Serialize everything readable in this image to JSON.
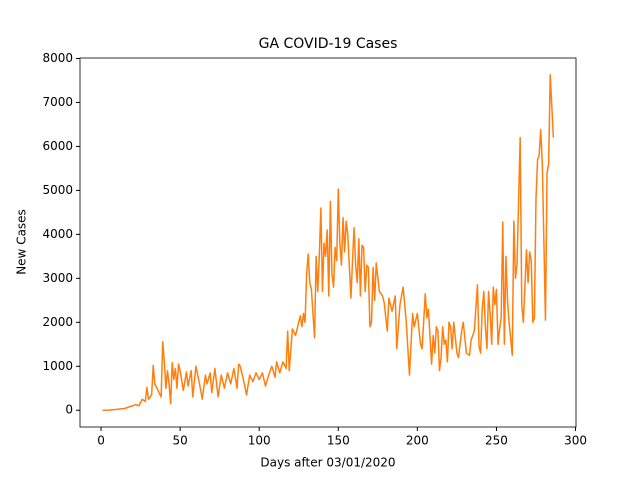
{
  "chart_data": {
    "type": "line",
    "title": "GA COVID-19 Cases",
    "x_label": "Days after 03/01/2020",
    "y_label": "New Cases",
    "xlim": [
      -13.3,
      300.3
    ],
    "ylim": [
      -381,
      8011
    ],
    "xticks": [
      0,
      50,
      100,
      150,
      200,
      250,
      300
    ],
    "yticks": [
      0,
      1000,
      2000,
      3000,
      4000,
      5000,
      6000,
      7000,
      8000
    ],
    "series": [
      {
        "name": "New Cases",
        "color": "#ff7f0e",
        "x": [
          1,
          5,
          10,
          15,
          18,
          20,
          22,
          24,
          26,
          28,
          29,
          30,
          32,
          33,
          34,
          36,
          38,
          39,
          40,
          41,
          42,
          43,
          44,
          45,
          46,
          47,
          48,
          49,
          50,
          52,
          54,
          55,
          57,
          58,
          60,
          62,
          64,
          66,
          67,
          69,
          70,
          72,
          74,
          76,
          78,
          80,
          82,
          84,
          86,
          87,
          88,
          90,
          92,
          94,
          96,
          98,
          100,
          102,
          104,
          106,
          108,
          110,
          111,
          113,
          115,
          117,
          118,
          119,
          121,
          123,
          125,
          126,
          127,
          128,
          129,
          130,
          131,
          132,
          133,
          135,
          136,
          137,
          138,
          139,
          140,
          141,
          142,
          143,
          144,
          145,
          146,
          147,
          148,
          149,
          150,
          151,
          152,
          153,
          154,
          155,
          156,
          158,
          159,
          160,
          161,
          162,
          163,
          164,
          165,
          166,
          167,
          168,
          169,
          170,
          171,
          172,
          173,
          174,
          176,
          178,
          179,
          181,
          182,
          184,
          186,
          187,
          189,
          191,
          193,
          195,
          197,
          198,
          200,
          202,
          203,
          205,
          206,
          207,
          209,
          210,
          211,
          212,
          213,
          214,
          215,
          216,
          217,
          218,
          219,
          220,
          221,
          222,
          223,
          225,
          226,
          228,
          229,
          231,
          233,
          234,
          236,
          238,
          239,
          240,
          241,
          242,
          243,
          244,
          245,
          246,
          247,
          248,
          249,
          250,
          251,
          252,
          253,
          254,
          255,
          256,
          257,
          258,
          260,
          261,
          262,
          263,
          265,
          266,
          267,
          269,
          270,
          271,
          272,
          273,
          274,
          275,
          276,
          277,
          278,
          279,
          281,
          282,
          283,
          284,
          286
        ],
        "values": [
          0,
          2,
          20,
          40,
          80,
          100,
          130,
          100,
          250,
          200,
          520,
          250,
          350,
          1020,
          600,
          450,
          300,
          1560,
          1100,
          500,
          900,
          600,
          150,
          1080,
          700,
          950,
          500,
          1050,
          900,
          450,
          870,
          550,
          900,
          300,
          1000,
          650,
          250,
          800,
          600,
          850,
          400,
          950,
          300,
          800,
          500,
          850,
          600,
          950,
          500,
          1050,
          1000,
          700,
          350,
          800,
          650,
          850,
          700,
          850,
          550,
          800,
          1000,
          750,
          1100,
          850,
          1100,
          950,
          1800,
          900,
          1850,
          1700,
          2000,
          2150,
          1900,
          2200,
          2000,
          3100,
          3550,
          2900,
          2750,
          1650,
          3500,
          2700,
          3500,
          4600,
          2700,
          3800,
          3500,
          4100,
          2600,
          4750,
          3100,
          2800,
          3700,
          3400,
          5030,
          3800,
          3300,
          4380,
          3600,
          4300,
          4000,
          2550,
          3400,
          4150,
          3300,
          2900,
          3900,
          2600,
          3750,
          3700,
          2700,
          3300,
          3250,
          1900,
          2000,
          3250,
          2500,
          3350,
          2700,
          2600,
          2450,
          1800,
          2550,
          2250,
          2600,
          1400,
          2400,
          2800,
          2000,
          800,
          2200,
          1900,
          2200,
          1500,
          1400,
          2650,
          2100,
          2300,
          1050,
          1700,
          1300,
          1900,
          1800,
          900,
          1200,
          1900,
          1500,
          1600,
          1100,
          2000,
          1900,
          1400,
          2000,
          1300,
          1200,
          1800,
          2000,
          1300,
          1250,
          1600,
          1800,
          2850,
          1450,
          1300,
          2300,
          2700,
          1900,
          1400,
          2700,
          2200,
          1500,
          2800,
          2400,
          2750,
          1500,
          1850,
          2100,
          4280,
          1500,
          3500,
          2500,
          2000,
          1250,
          4300,
          3000,
          3300,
          6200,
          2400,
          2000,
          3650,
          2900,
          3600,
          3400,
          2000,
          2100,
          4800,
          5700,
          5800,
          6380,
          5600,
          2050,
          5400,
          5600,
          7630,
          6200
        ]
      }
    ]
  }
}
